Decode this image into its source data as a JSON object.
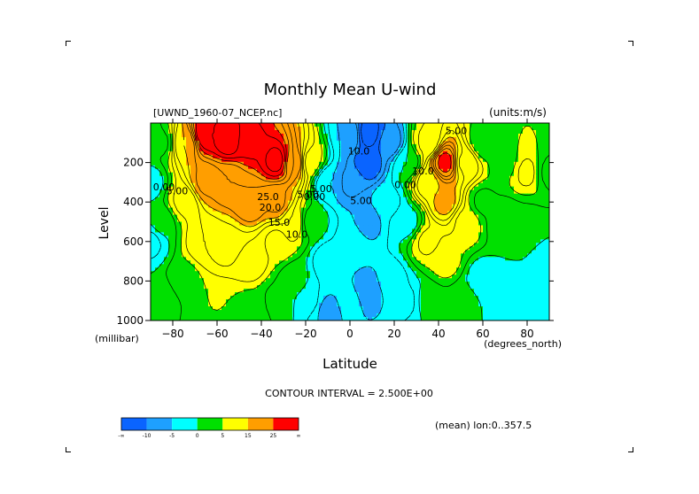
{
  "chart_data": {
    "type": "heatmap",
    "title": "Monthly Mean U-wind",
    "dataset_label": "[UWND_1960-07_NCEP.nc]",
    "units_label": "(units:m/s)",
    "xlabel": "Latitude",
    "x_units": "(degrees_north)",
    "ylabel": "Level",
    "y_units": "(millibar)",
    "xlim": [
      -90,
      90
    ],
    "ylim": [
      1000,
      0
    ],
    "x_ticks": [
      -80,
      -60,
      -40,
      -20,
      0,
      20,
      40,
      60,
      80
    ],
    "y_ticks": [
      200,
      400,
      600,
      800,
      1000
    ],
    "contour_interval_text": "CONTOUR INTERVAL = 2.500E+00",
    "averaging_note": "(mean) lon:0..357.5",
    "colorbar": {
      "colors": [
        "#0a64ff",
        "#1ea0ff",
        "#00ffff",
        "#00e000",
        "#ffff00",
        "#ff9e00",
        "#ff0000"
      ],
      "boundaries": [
        -30,
        -10,
        -5,
        0,
        5,
        15,
        25,
        35
      ],
      "tick_labels": [
        "-∞",
        "-10",
        "-5",
        "0",
        "5",
        "15",
        "25",
        "∞"
      ]
    },
    "contour_labels": [
      {
        "text": "25.0",
        "lat": -37,
        "lev": 390
      },
      {
        "text": "20.0",
        "lat": -36,
        "lev": 445
      },
      {
        "text": "15.0",
        "lat": -32,
        "lev": 520
      },
      {
        "text": "10.0",
        "lat": -24,
        "lev": 580
      },
      {
        "text": "0.00",
        "lat": -84,
        "lev": 340
      },
      {
        "text": "5.00",
        "lat": -78,
        "lev": 360
      },
      {
        "text": "0.00",
        "lat": -16,
        "lev": 390
      },
      {
        "text": "5.00",
        "lat": -19,
        "lev": 380
      },
      {
        "text": "5.00",
        "lat": -13,
        "lev": 350
      },
      {
        "text": "5.00",
        "lat": 5,
        "lev": 410
      },
      {
        "text": "10.0",
        "lat": 4,
        "lev": 160
      },
      {
        "text": "0.00",
        "lat": 25,
        "lev": 330
      },
      {
        "text": "10.0",
        "lat": 33,
        "lev": 260
      },
      {
        "text": "5.00",
        "lat": 48,
        "lev": 55
      }
    ],
    "field_anchors": [
      {
        "lat": -90,
        "lev": 50,
        "u": 2
      },
      {
        "lat": -90,
        "lev": 300,
        "u": -1
      },
      {
        "lat": -90,
        "lev": 600,
        "u": -3
      },
      {
        "lat": -85,
        "lev": 100,
        "u": 2
      },
      {
        "lat": -85,
        "lev": 500,
        "u": 1
      },
      {
        "lat": -85,
        "lev": 900,
        "u": 0
      },
      {
        "lat": -75,
        "lev": 100,
        "u": 15
      },
      {
        "lat": -75,
        "lev": 400,
        "u": 8
      },
      {
        "lat": -75,
        "lev": 800,
        "u": 4
      },
      {
        "lat": -65,
        "lev": 50,
        "u": 30
      },
      {
        "lat": -65,
        "lev": 300,
        "u": 18
      },
      {
        "lat": -65,
        "lev": 600,
        "u": 10
      },
      {
        "lat": -65,
        "lev": 950,
        "u": 5
      },
      {
        "lat": -55,
        "lev": 80,
        "u": 32
      },
      {
        "lat": -55,
        "lev": 300,
        "u": 20
      },
      {
        "lat": -55,
        "lev": 600,
        "u": 12
      },
      {
        "lat": -55,
        "lev": 950,
        "u": 5
      },
      {
        "lat": -45,
        "lev": 100,
        "u": 28
      },
      {
        "lat": -45,
        "lev": 400,
        "u": 20
      },
      {
        "lat": -45,
        "lev": 700,
        "u": 9
      },
      {
        "lat": -45,
        "lev": 950,
        "u": 4
      },
      {
        "lat": -33,
        "lev": 190,
        "u": 31
      },
      {
        "lat": -33,
        "lev": 400,
        "u": 18
      },
      {
        "lat": -33,
        "lev": 600,
        "u": 7
      },
      {
        "lat": -33,
        "lev": 900,
        "u": 2
      },
      {
        "lat": -25,
        "lev": 200,
        "u": 20
      },
      {
        "lat": -25,
        "lev": 500,
        "u": 10
      },
      {
        "lat": -25,
        "lev": 800,
        "u": 1
      },
      {
        "lat": -18,
        "lev": 200,
        "u": 6
      },
      {
        "lat": -18,
        "lev": 500,
        "u": 1
      },
      {
        "lat": -18,
        "lev": 900,
        "u": -2
      },
      {
        "lat": -10,
        "lev": 300,
        "u": -5
      },
      {
        "lat": -10,
        "lev": 700,
        "u": -4
      },
      {
        "lat": -10,
        "lev": 950,
        "u": -6
      },
      {
        "lat": 0,
        "lev": 60,
        "u": -5
      },
      {
        "lat": 0,
        "lev": 300,
        "u": -8
      },
      {
        "lat": 0,
        "lev": 600,
        "u": -3
      },
      {
        "lat": 0,
        "lev": 900,
        "u": -4
      },
      {
        "lat": 8,
        "lev": 50,
        "u": -14
      },
      {
        "lat": 8,
        "lev": 200,
        "u": -12
      },
      {
        "lat": 8,
        "lev": 500,
        "u": -6
      },
      {
        "lat": 8,
        "lev": 850,
        "u": -7
      },
      {
        "lat": 18,
        "lev": 100,
        "u": -9
      },
      {
        "lat": 18,
        "lev": 400,
        "u": -3
      },
      {
        "lat": 18,
        "lev": 800,
        "u": -4
      },
      {
        "lat": 26,
        "lev": 200,
        "u": 0
      },
      {
        "lat": 26,
        "lev": 500,
        "u": -1
      },
      {
        "lat": 26,
        "lev": 900,
        "u": -3
      },
      {
        "lat": 35,
        "lev": 100,
        "u": 8
      },
      {
        "lat": 35,
        "lev": 300,
        "u": 14
      },
      {
        "lat": 35,
        "lev": 600,
        "u": 8
      },
      {
        "lat": 35,
        "lev": 900,
        "u": 1
      },
      {
        "lat": 43,
        "lev": 200,
        "u": 26
      },
      {
        "lat": 43,
        "lev": 400,
        "u": 16
      },
      {
        "lat": 43,
        "lev": 700,
        "u": 6
      },
      {
        "lat": 43,
        "lev": 950,
        "u": 2
      },
      {
        "lat": 52,
        "lev": 200,
        "u": 12
      },
      {
        "lat": 52,
        "lev": 500,
        "u": 7
      },
      {
        "lat": 52,
        "lev": 900,
        "u": 1
      },
      {
        "lat": 60,
        "lev": 100,
        "u": 3
      },
      {
        "lat": 60,
        "lev": 400,
        "u": 2
      },
      {
        "lat": 60,
        "lev": 800,
        "u": -2
      },
      {
        "lat": 70,
        "lev": 200,
        "u": 4
      },
      {
        "lat": 70,
        "lev": 500,
        "u": 0
      },
      {
        "lat": 70,
        "lev": 900,
        "u": -2
      },
      {
        "lat": 80,
        "lev": 250,
        "u": 8
      },
      {
        "lat": 80,
        "lev": 500,
        "u": 2
      },
      {
        "lat": 80,
        "lev": 900,
        "u": -1
      },
      {
        "lat": 90,
        "lev": 250,
        "u": 2
      },
      {
        "lat": 90,
        "lev": 700,
        "u": -1
      }
    ]
  }
}
